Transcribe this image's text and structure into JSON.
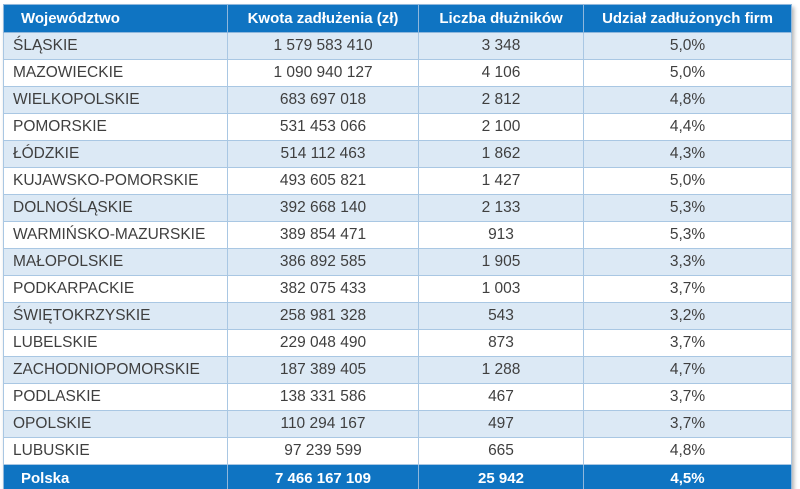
{
  "chart_data": {
    "type": "table",
    "columns": [
      "Województwo",
      "Kwota zadłużenia (zł)",
      "Liczba dłużników",
      "Udział zadłużonych firm"
    ],
    "rows": [
      [
        "ŚLĄSKIE",
        "1 579 583 410",
        "3 348",
        "5,0%"
      ],
      [
        "MAZOWIECKIE",
        "1 090 940 127",
        "4 106",
        "5,0%"
      ],
      [
        "WIELKOPOLSKIE",
        "683 697 018",
        "2 812",
        "4,8%"
      ],
      [
        "POMORSKIE",
        "531 453 066",
        "2 100",
        "4,4%"
      ],
      [
        "ŁÓDZKIE",
        "514 112 463",
        "1 862",
        "4,3%"
      ],
      [
        "KUJAWSKO-POMORSKIE",
        "493 605 821",
        "1 427",
        "5,0%"
      ],
      [
        "DOLNOŚLĄSKIE",
        "392 668 140",
        "2 133",
        "5,3%"
      ],
      [
        "WARMIŃSKO-MAZURSKIE",
        "389 854 471",
        "913",
        "5,3%"
      ],
      [
        "MAŁOPOLSKIE",
        "386 892 585",
        "1 905",
        "3,3%"
      ],
      [
        "PODKARPACKIE",
        "382 075 433",
        "1 003",
        "3,7%"
      ],
      [
        "ŚWIĘTOKRZYSKIE",
        "258 981 328",
        "543",
        "3,2%"
      ],
      [
        "LUBELSKIE",
        "229 048 490",
        "873",
        "3,7%"
      ],
      [
        "ZACHODNIOPOMORSKIE",
        "187 389 405",
        "1 288",
        "4,7%"
      ],
      [
        "PODLASKIE",
        "138 331 586",
        "467",
        "3,7%"
      ],
      [
        "OPOLSKIE",
        "110 294 167",
        "497",
        "3,7%"
      ],
      [
        "LUBUSKIE",
        "97 239 599",
        "665",
        "4,8%"
      ]
    ],
    "footer": [
      "Polska",
      "7 466 167 109",
      "25 942",
      "4,5%"
    ],
    "numeric": {
      "voivodeships": [
        "ŚLĄSKIE",
        "MAZOWIECKIE",
        "WIELKOPOLSKIE",
        "POMORSKIE",
        "ŁÓDZKIE",
        "KUJAWSKO-POMORSKIE",
        "DOLNOŚLĄSKIE",
        "WARMIŃSKO-MAZURSKIE",
        "MAŁOPOLSKIE",
        "PODKARPACKIE",
        "ŚWIĘTOKRZYSKIE",
        "LUBELSKIE",
        "ZACHODNIOPOMORSKIE",
        "PODLASKIE",
        "OPOLSKIE",
        "LUBUSKIE"
      ],
      "debt_amount_zl": [
        1579583410,
        1090940127,
        683697018,
        531453066,
        514112463,
        493605821,
        392668140,
        389854471,
        386892585,
        382075433,
        258981328,
        229048490,
        187389405,
        138331586,
        110294167,
        97239599
      ],
      "debtor_count": [
        3348,
        4106,
        2812,
        2100,
        1862,
        1427,
        2133,
        913,
        1905,
        1003,
        543,
        873,
        1288,
        467,
        497,
        665
      ],
      "indebted_firms_share_pct": [
        5.0,
        5.0,
        4.8,
        4.4,
        4.3,
        5.0,
        5.3,
        5.3,
        3.3,
        3.7,
        3.2,
        3.7,
        4.7,
        3.7,
        3.7,
        4.8
      ],
      "poland_total": {
        "debt_amount_zl": 7466167109,
        "debtor_count": 25942,
        "indebted_firms_share_pct": 4.5
      }
    },
    "layout": {
      "banded_rows": true,
      "header_position": "top",
      "total_row_position": "bottom"
    }
  },
  "style": {
    "header_bg": "#0f74c2",
    "header_text": "#ffffff",
    "band_row_bg": "#dce9f5",
    "plain_row_bg": "#ffffff",
    "grid_line": "#a9c7e3",
    "data_text": "#3f3f3f"
  }
}
